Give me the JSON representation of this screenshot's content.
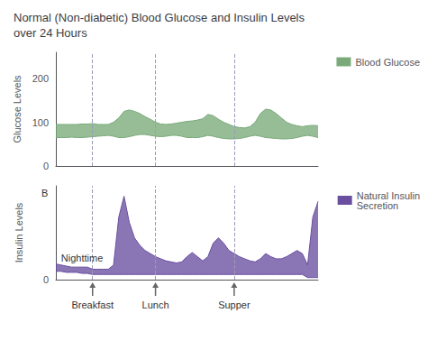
{
  "chart_data": [
    {
      "type": "band",
      "title": "Normal (Non-diabetic) Blood Glucose and Insulin Levels\nover 24 Hours",
      "x": [
        0,
        2,
        4,
        6,
        8,
        10,
        12,
        14,
        16,
        18,
        20,
        22,
        24,
        26,
        28,
        30,
        32,
        34,
        36,
        38,
        40,
        42,
        44,
        46,
        48,
        50,
        52,
        54,
        56,
        58,
        60,
        62,
        64,
        66,
        68,
        70,
        72,
        74,
        76,
        78,
        80,
        82,
        84,
        86,
        88,
        90,
        92,
        94,
        96,
        98,
        100
      ],
      "series": [
        {
          "name": "Blood Glucose",
          "color": "#7aaa7a",
          "lower": [
            65,
            65,
            65,
            66,
            65,
            65,
            66,
            67,
            68,
            69,
            70,
            68,
            65,
            65,
            67,
            70,
            72,
            72,
            70,
            68,
            67,
            68,
            70,
            70,
            68,
            65,
            65,
            65,
            67,
            70,
            68,
            65,
            63,
            62,
            62,
            63,
            65,
            68,
            70,
            68,
            65,
            64,
            63,
            62,
            62,
            63,
            65,
            68,
            70,
            68,
            65
          ],
          "upper": [
            95,
            95,
            95,
            95,
            95,
            96,
            96,
            97,
            95,
            95,
            95,
            100,
            110,
            125,
            128,
            125,
            120,
            113,
            107,
            100,
            96,
            95,
            96,
            98,
            100,
            102,
            103,
            105,
            108,
            118,
            115,
            107,
            100,
            95,
            90,
            88,
            87,
            90,
            100,
            120,
            130,
            128,
            120,
            110,
            100,
            95,
            92,
            90,
            92,
            93,
            92
          ]
        }
      ],
      "ylabel": "Glucose Levels",
      "xlim": [
        0,
        100
      ],
      "ylim": [
        0,
        260
      ],
      "yticks": [
        0,
        100,
        200
      ],
      "tick_labels": "y",
      "grid": false,
      "legend": "right",
      "meal_x": [
        14,
        38,
        68
      ]
    },
    {
      "type": "band",
      "x": [
        0,
        2,
        4,
        6,
        8,
        10,
        12,
        14,
        16,
        18,
        20,
        22,
        24,
        26,
        28,
        30,
        32,
        34,
        36,
        38,
        40,
        42,
        44,
        46,
        48,
        50,
        52,
        54,
        56,
        58,
        60,
        62,
        64,
        66,
        68,
        70,
        72,
        74,
        76,
        78,
        80,
        82,
        84,
        86,
        88,
        90,
        92,
        94,
        96,
        98,
        100
      ],
      "series": [
        {
          "name": "Natural Insulin\nSecretion",
          "color": "#6a4fa0",
          "lower": [
            8,
            8,
            7,
            7,
            7,
            6,
            6,
            5,
            5,
            5,
            5,
            5,
            5,
            5,
            5,
            5,
            5,
            5,
            5,
            5,
            5,
            5,
            5,
            5,
            5,
            5,
            5,
            5,
            5,
            5,
            5,
            5,
            5,
            5,
            5,
            5,
            5,
            5,
            5,
            5,
            5,
            5,
            5,
            5,
            5,
            5,
            5,
            5,
            2,
            2,
            2
          ],
          "upper": [
            15,
            14,
            13,
            12,
            12,
            12,
            12,
            10,
            10,
            10,
            10,
            14,
            60,
            80,
            55,
            40,
            33,
            28,
            25,
            22,
            20,
            18,
            17,
            16,
            17,
            22,
            26,
            22,
            18,
            22,
            35,
            40,
            35,
            28,
            25,
            22,
            20,
            18,
            17,
            20,
            25,
            22,
            20,
            20,
            22,
            25,
            28,
            25,
            14,
            60,
            75
          ]
        }
      ],
      "ylabel": "Insulin Levels",
      "xlim": [
        0,
        100
      ],
      "ylim": [
        0,
        90
      ],
      "yticks": [
        0
      ],
      "tick_labels": "y",
      "grid": false,
      "legend": "right",
      "annotations": [
        {
          "text": "B",
          "x": -3,
          "y": 88
        },
        {
          "text": "Nighttime",
          "x": 2,
          "y": 16
        }
      ],
      "meal_x": [
        14,
        38,
        68
      ],
      "meal_labels": [
        "Breakfast",
        "Lunch",
        "Supper"
      ]
    }
  ]
}
